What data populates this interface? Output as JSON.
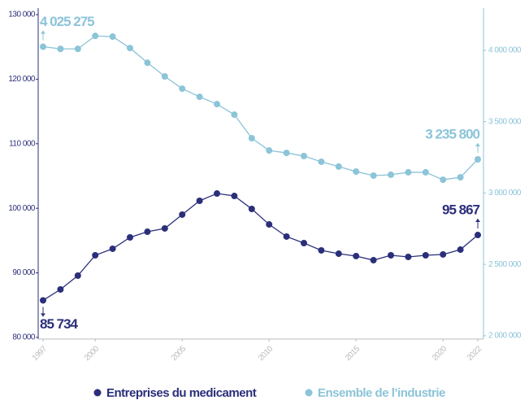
{
  "chart_data": {
    "type": "line",
    "x": [
      1997,
      1998,
      1999,
      2000,
      2001,
      2002,
      2003,
      2004,
      2005,
      2006,
      2007,
      2008,
      2009,
      2010,
      2011,
      2012,
      2013,
      2014,
      2015,
      2016,
      2017,
      2018,
      2019,
      2020,
      2021,
      2022
    ],
    "xlim": [
      1997,
      2022
    ],
    "xticks": [
      1997,
      2000,
      2005,
      2010,
      2015,
      2020,
      2022
    ],
    "ylim": [
      80000,
      130000
    ],
    "yticks": [
      {
        "value": 80000,
        "label": "80 000"
      },
      {
        "value": 90000,
        "label": "90 000"
      },
      {
        "value": 100000,
        "label": "100 000"
      },
      {
        "value": 110000,
        "label": "110 000"
      },
      {
        "value": 120000,
        "label": "120 000"
      },
      {
        "value": 130000,
        "label": "130 000"
      }
    ],
    "y2lim": [
      1988000,
      4250000
    ],
    "y2ticks": [
      {
        "value": 2000000,
        "label": "2 000 000"
      },
      {
        "value": 2500000,
        "label": "2 500 000"
      },
      {
        "value": 3000000,
        "label": "3 000 000"
      },
      {
        "value": 3500000,
        "label": "3 500 000"
      },
      {
        "value": 4000000,
        "label": "4 000 000"
      }
    ],
    "legend": "bottom",
    "series": [
      {
        "name": "Entreprises du medicament",
        "color": "#2b2f7a",
        "values": [
          85734,
          87430,
          89570,
          92720,
          93730,
          95490,
          96370,
          96880,
          99020,
          101160,
          102290,
          101910,
          99900,
          97500,
          95620,
          94610,
          93480,
          92970,
          92600,
          91960,
          92720,
          92470,
          92720,
          92850,
          93600,
          95867
        ],
        "value_labels": [
          "85 734",
          null,
          null,
          null,
          null,
          null,
          null,
          null,
          null,
          null,
          null,
          null,
          null,
          null,
          null,
          null,
          null,
          null,
          null,
          null,
          null,
          null,
          null,
          null,
          null,
          "95 867"
        ]
      },
      {
        "name": "Ensemble de l’industrie",
        "color": "#8cc4d8",
        "axis": "y2",
        "values": [
          4025275,
          4010000,
          4010000,
          4101000,
          4096000,
          4016000,
          3913000,
          3817000,
          3731000,
          3674000,
          3623000,
          3549000,
          3384000,
          3298000,
          3281000,
          3259000,
          3219000,
          3185000,
          3150000,
          3122000,
          3128000,
          3145000,
          3145000,
          3093000,
          3110000,
          3235800
        ],
        "value_labels": [
          "4 025 275",
          null,
          null,
          null,
          null,
          null,
          null,
          null,
          null,
          null,
          null,
          null,
          null,
          null,
          null,
          null,
          null,
          null,
          null,
          null,
          null,
          null,
          null,
          null,
          null,
          "3 235 800"
        ]
      }
    ]
  }
}
